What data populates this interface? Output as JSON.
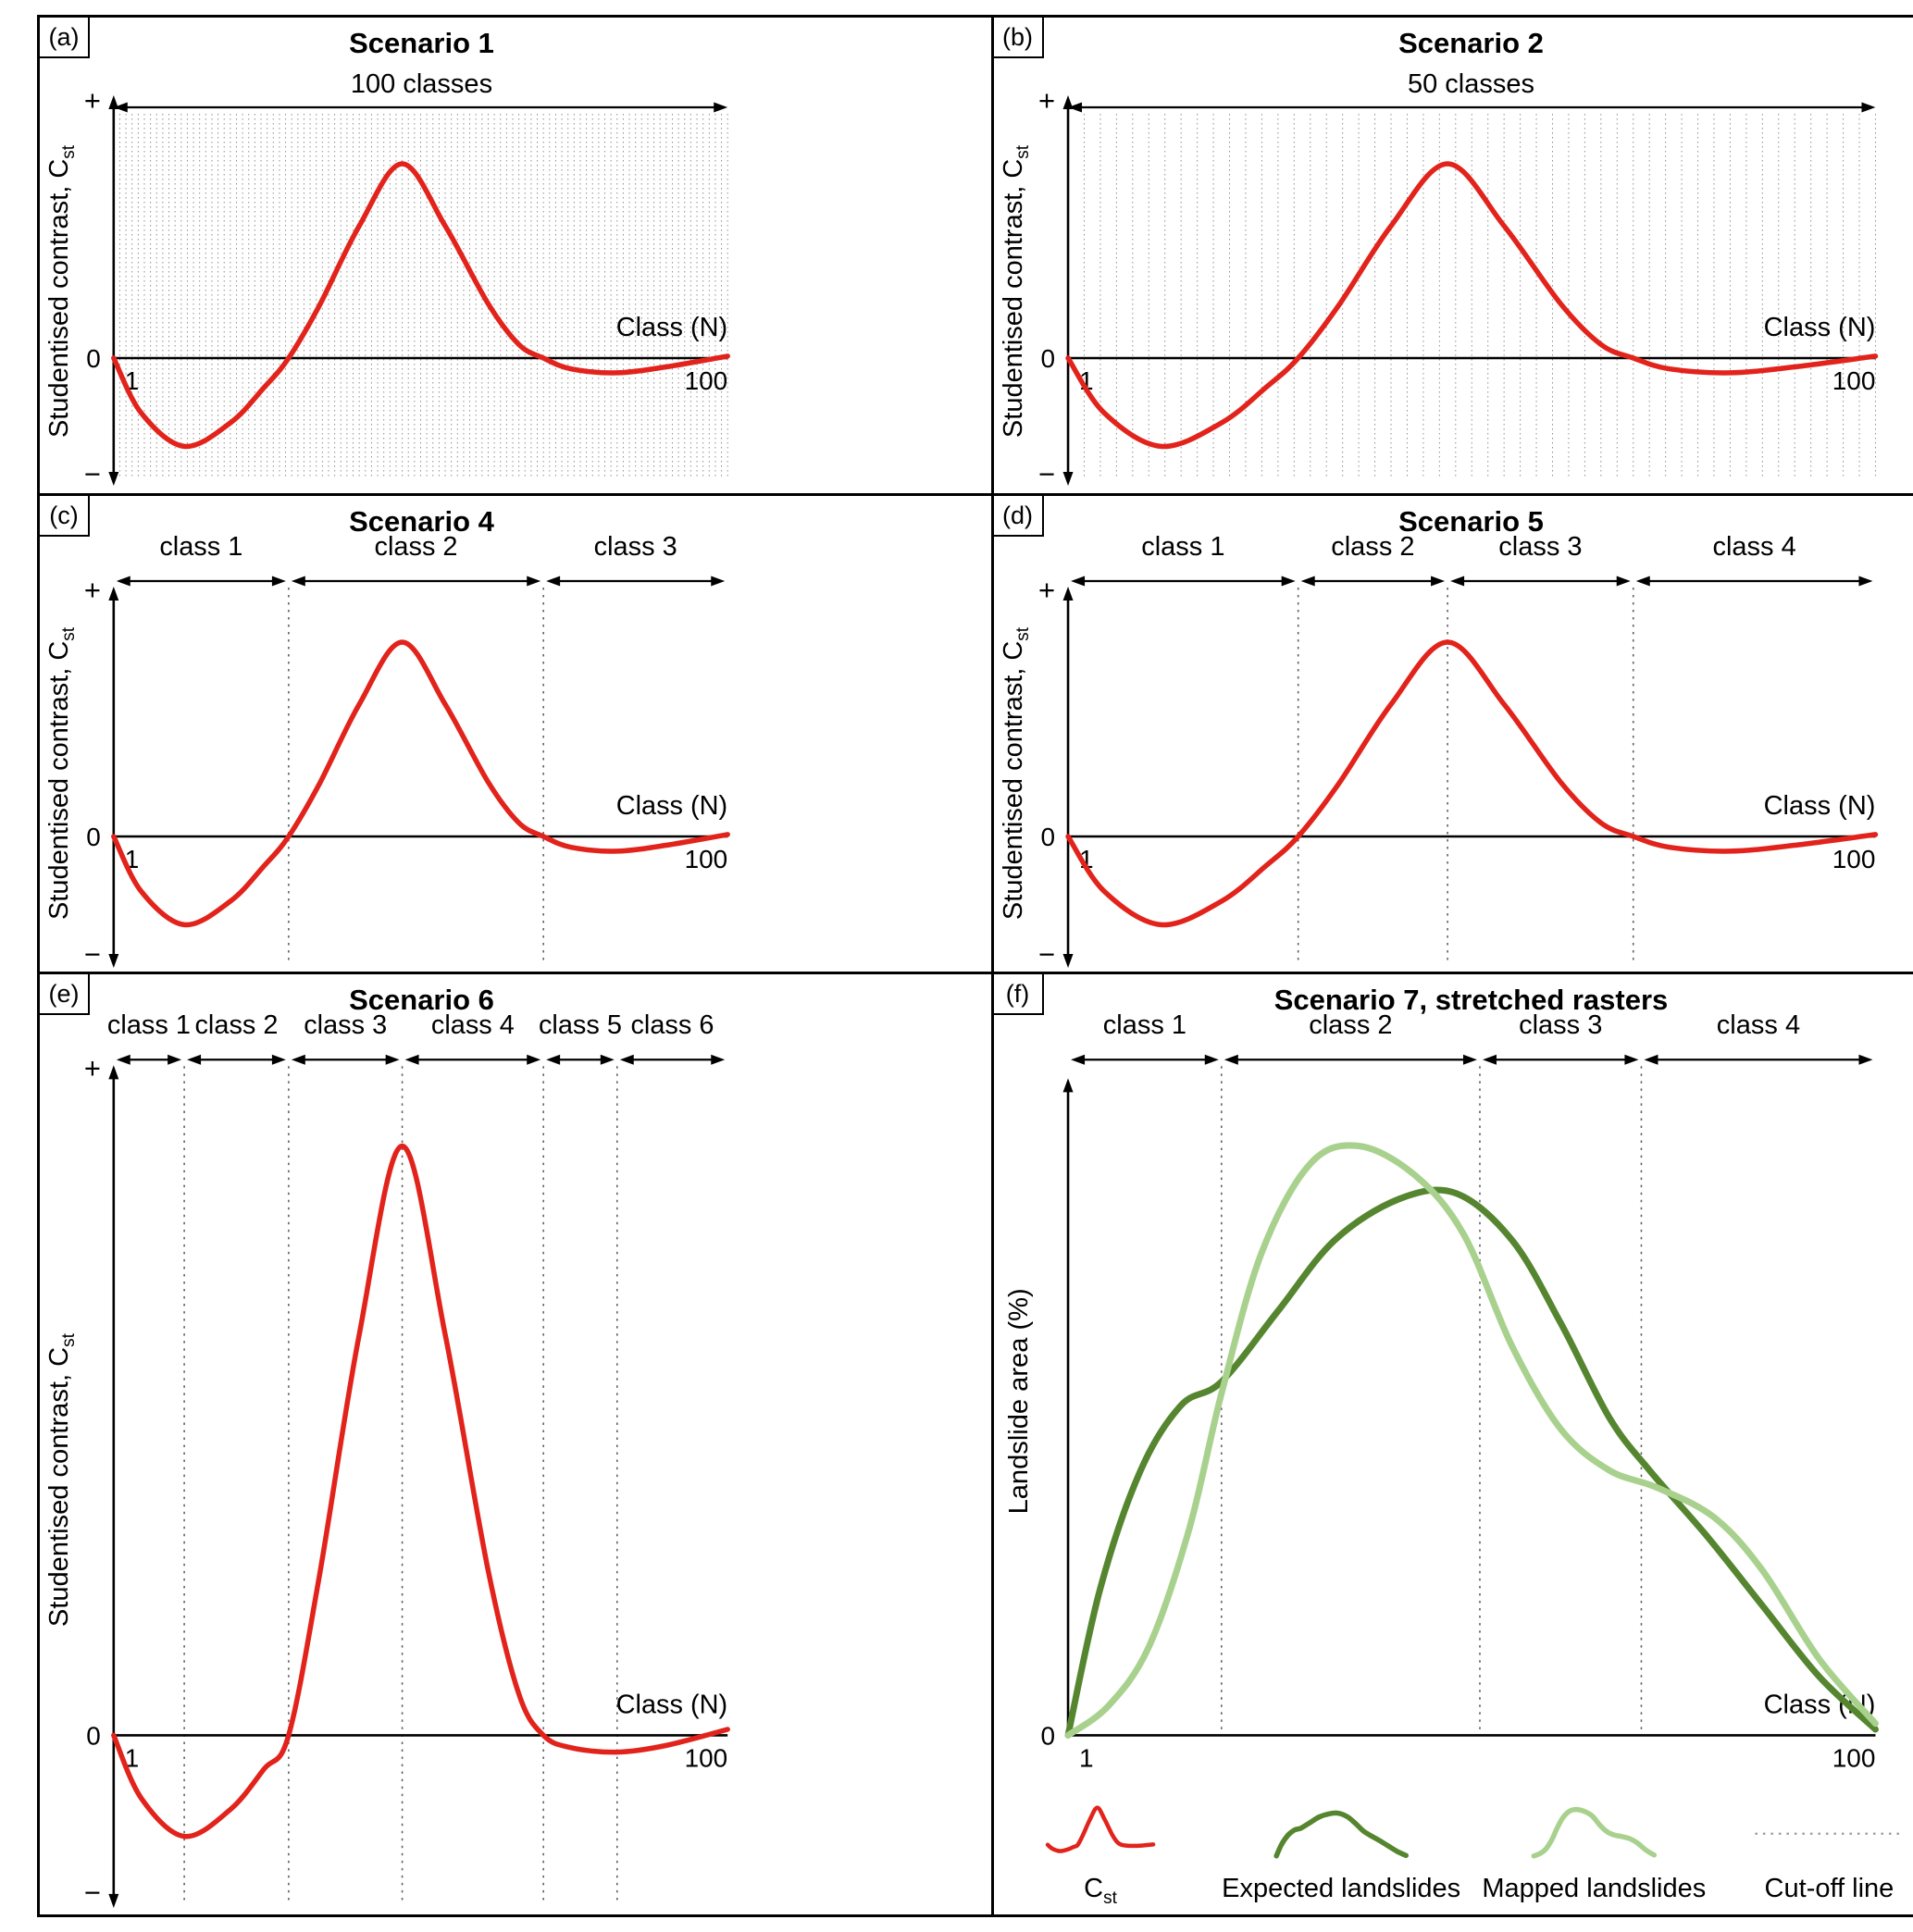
{
  "figure": {
    "colors": {
      "curve_red": "#E2231B",
      "expected_green": "#55862F",
      "mapped_green": "#A9D18E",
      "gridline_gray": "#8F8F8F",
      "boundary_gray": "#606060",
      "cutoff_gray": "#9A9A9A",
      "axis_black": "#000000"
    },
    "panels": [
      {
        "label": "(a)",
        "title": "Scenario 1",
        "subtitle": "100 classes",
        "classes_count": 100,
        "axis": {
          "ylabel": "Studentised contrast, C",
          "ylabel_sub": "st",
          "xlabel": "Class (N)",
          "first_class": "1",
          "last_class": "100",
          "zero": "0",
          "plus": "+",
          "minus": "−"
        }
      },
      {
        "label": "(b)",
        "title": "Scenario 2",
        "subtitle": "50 classes",
        "classes_count": 50,
        "axis": {
          "ylabel": "Studentised contrast, C",
          "ylabel_sub": "st",
          "xlabel": "Class (N)",
          "first_class": "1",
          "last_class": "100",
          "zero": "0",
          "plus": "+",
          "minus": "−"
        }
      },
      {
        "label": "(c)",
        "title": "Scenario 4",
        "classes": [
          {
            "label": "class 1",
            "from": 0,
            "to": 0.285
          },
          {
            "label": "class 2",
            "from": 0.285,
            "to": 0.7
          },
          {
            "label": "class 3",
            "from": 0.7,
            "to": 1
          }
        ],
        "axis": {
          "ylabel": "Studentised contrast, C",
          "ylabel_sub": "st",
          "xlabel": "Class (N)",
          "first_class": "1",
          "last_class": "100",
          "zero": "0",
          "plus": "+",
          "minus": "−"
        }
      },
      {
        "label": "(d)",
        "title": "Scenario 5",
        "classes": [
          {
            "label": "class 1",
            "from": 0,
            "to": 0.285
          },
          {
            "label": "class 2",
            "from": 0.285,
            "to": 0.47
          },
          {
            "label": "class 3",
            "from": 0.47,
            "to": 0.7
          },
          {
            "label": "class 4",
            "from": 0.7,
            "to": 1
          }
        ],
        "axis": {
          "ylabel": "Studentised contrast, C",
          "ylabel_sub": "st",
          "xlabel": "Class (N)",
          "first_class": "1",
          "last_class": "100",
          "zero": "0",
          "plus": "+",
          "minus": "−"
        }
      },
      {
        "label": "(e)",
        "title": "Scenario 6",
        "classes": [
          {
            "label": "class 1",
            "from": 0,
            "to": 0.115
          },
          {
            "label": "class 2",
            "from": 0.115,
            "to": 0.285
          },
          {
            "label": "class 3",
            "from": 0.285,
            "to": 0.47
          },
          {
            "label": "class 4",
            "from": 0.47,
            "to": 0.7
          },
          {
            "label": "class 5",
            "from": 0.7,
            "to": 0.82
          },
          {
            "label": "class 6",
            "from": 0.82,
            "to": 1
          }
        ],
        "axis": {
          "ylabel": "Studentised contrast, C",
          "ylabel_sub": "st",
          "xlabel": "Class (N)",
          "first_class": "1",
          "last_class": "100",
          "zero": "0",
          "plus": "+",
          "minus": "−"
        }
      },
      {
        "label": "(f)",
        "title": "Scenario 7, stretched rasters",
        "classes": [
          {
            "label": "class 1",
            "from": 0,
            "to": 0.19
          },
          {
            "label": "class 2",
            "from": 0.19,
            "to": 0.51
          },
          {
            "label": "class 3",
            "from": 0.51,
            "to": 0.71
          },
          {
            "label": "class 4",
            "from": 0.71,
            "to": 1
          }
        ],
        "axis": {
          "ylabel": "Landslide area (%)",
          "xlabel": "Class (N)",
          "first_class": "1",
          "last_class": "100",
          "zero": "0"
        },
        "legend": [
          {
            "main": "C",
            "sub": "st"
          },
          {
            "main": "Expected landslides"
          },
          {
            "main": "Mapped landslides"
          },
          {
            "main": "Cut-off line"
          }
        ]
      }
    ]
  },
  "chart_data": {
    "type": "line",
    "x_axis": {
      "label": "Class (N)",
      "min": 1,
      "max": 100
    },
    "panels": [
      {
        "id": "a",
        "title": "Scenario 1",
        "subtitle": "100 classes",
        "num_classes": 100,
        "ylabel": "Studentised contrast, Cst",
        "series": [
          "cst"
        ],
        "grid": "dotted vertical line per class"
      },
      {
        "id": "b",
        "title": "Scenario 2",
        "subtitle": "50 classes",
        "num_classes": 50,
        "ylabel": "Studentised contrast, Cst",
        "series": [
          "cst"
        ],
        "grid": "dotted vertical line per class"
      },
      {
        "id": "c",
        "title": "Scenario 4",
        "num_classes": 3,
        "class_breaks_fraction": [
          0.285,
          0.7
        ],
        "ylabel": "Studentised contrast, Cst",
        "series": [
          "cst"
        ]
      },
      {
        "id": "d",
        "title": "Scenario 5",
        "num_classes": 4,
        "class_breaks_fraction": [
          0.285,
          0.47,
          0.7
        ],
        "ylabel": "Studentised contrast, Cst",
        "series": [
          "cst"
        ]
      },
      {
        "id": "e",
        "title": "Scenario 6",
        "num_classes": 6,
        "class_breaks_fraction": [
          0.115,
          0.285,
          0.47,
          0.7,
          0.82
        ],
        "ylabel": "Studentised contrast, Cst",
        "series": [
          "cst"
        ]
      },
      {
        "id": "f",
        "title": "Scenario 7, stretched rasters",
        "num_classes": 4,
        "class_breaks_fraction": [
          0.19,
          0.51,
          0.71
        ],
        "ylabel": "Landslide area (%)",
        "series": [
          "expected_landslides",
          "mapped_landslides"
        ],
        "legend": [
          "Cst",
          "Expected landslides",
          "Mapped landslides",
          "Cut-off line"
        ]
      }
    ],
    "series": {
      "cst": {
        "name": "Studentised contrast, Cst",
        "color": "#E2231B",
        "y_scale": "normalized, peak = 1",
        "points": [
          [
            0,
            0
          ],
          [
            0.045,
            -0.28
          ],
          [
            0.115,
            -0.45
          ],
          [
            0.19,
            -0.33
          ],
          [
            0.245,
            -0.15
          ],
          [
            0.285,
            0
          ],
          [
            0.335,
            0.27
          ],
          [
            0.4,
            0.68
          ],
          [
            0.47,
            1
          ],
          [
            0.54,
            0.68
          ],
          [
            0.61,
            0.28
          ],
          [
            0.66,
            0.07
          ],
          [
            0.7,
            0
          ],
          [
            0.745,
            -0.055
          ],
          [
            0.82,
            -0.075
          ],
          [
            0.9,
            -0.045
          ],
          [
            1,
            0.01
          ]
        ]
      },
      "expected_landslides": {
        "name": "Expected landslides",
        "color": "#55862F",
        "y_scale": "normalized, max = 1",
        "points": [
          [
            0,
            0
          ],
          [
            0.04,
            0.25
          ],
          [
            0.09,
            0.45
          ],
          [
            0.14,
            0.56
          ],
          [
            0.19,
            0.6
          ],
          [
            0.26,
            0.72
          ],
          [
            0.33,
            0.84
          ],
          [
            0.41,
            0.91
          ],
          [
            0.48,
            0.92
          ],
          [
            0.55,
            0.84
          ],
          [
            0.61,
            0.7
          ],
          [
            0.67,
            0.54
          ],
          [
            0.72,
            0.45
          ],
          [
            0.79,
            0.34
          ],
          [
            0.86,
            0.22
          ],
          [
            0.93,
            0.1
          ],
          [
            1,
            0.01
          ]
        ]
      },
      "mapped_landslides": {
        "name": "Mapped landslides",
        "color": "#A9D18E",
        "y_scale": "normalized, max = 1",
        "points": [
          [
            0,
            0
          ],
          [
            0.05,
            0.05
          ],
          [
            0.1,
            0.15
          ],
          [
            0.15,
            0.35
          ],
          [
            0.19,
            0.58
          ],
          [
            0.24,
            0.82
          ],
          [
            0.3,
            0.97
          ],
          [
            0.36,
            1
          ],
          [
            0.43,
            0.95
          ],
          [
            0.49,
            0.85
          ],
          [
            0.55,
            0.66
          ],
          [
            0.61,
            0.52
          ],
          [
            0.67,
            0.45
          ],
          [
            0.73,
            0.42
          ],
          [
            0.8,
            0.37
          ],
          [
            0.86,
            0.28
          ],
          [
            0.93,
            0.13
          ],
          [
            1,
            0.02
          ]
        ]
      }
    }
  }
}
